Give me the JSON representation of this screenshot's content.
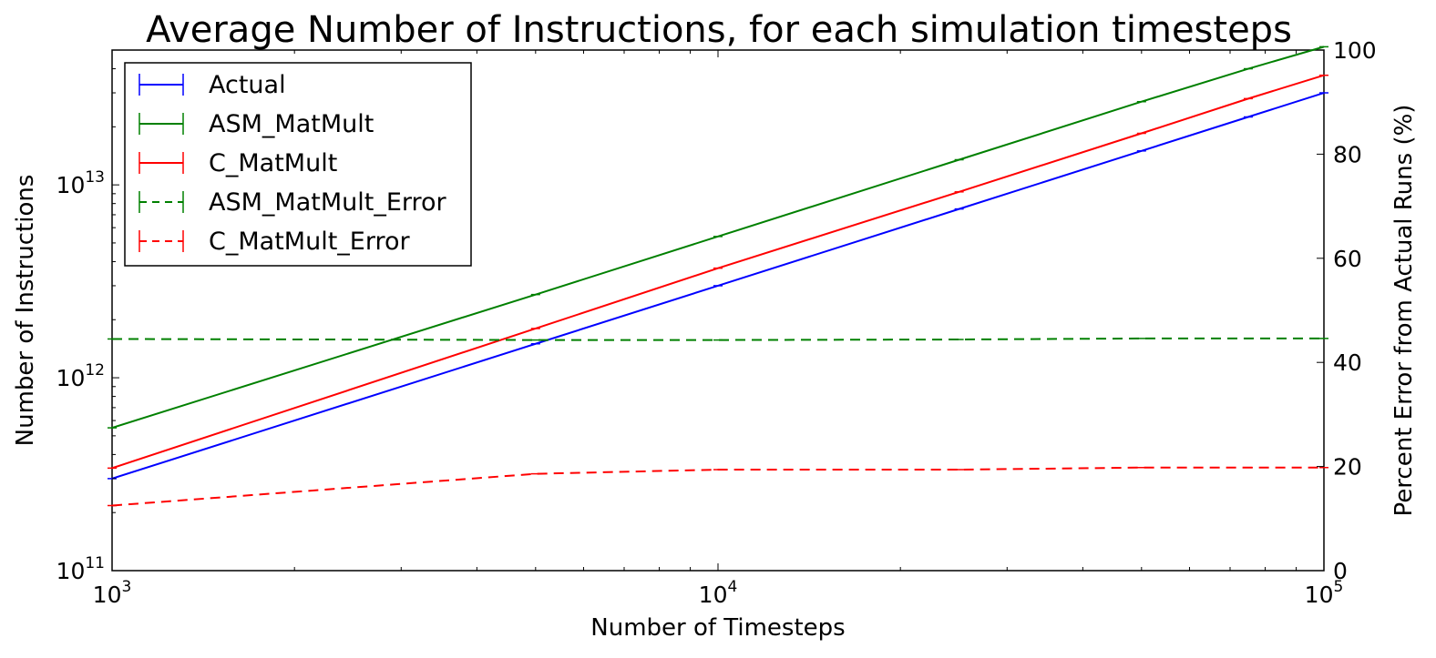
{
  "chart_data": {
    "type": "line",
    "title": "Average Number of Instructions, for each simulation timesteps",
    "xlabel": "Number of Timesteps",
    "ylabel": "Number of Instructions",
    "y2label": "Percent Error from Actual Runs (%)",
    "xscale": "log",
    "yscale": "log",
    "xlim": [
      1000,
      100000
    ],
    "ylim": [
      100000000000,
      50000000000000
    ],
    "y2lim": [
      0,
      100
    ],
    "x_ticks": [
      {
        "value": 1000,
        "base": "10",
        "exp": "3"
      },
      {
        "value": 10000,
        "base": "10",
        "exp": "4"
      },
      {
        "value": 100000,
        "base": "10",
        "exp": "5"
      }
    ],
    "y_ticks": [
      {
        "value": 100000000000,
        "base": "10",
        "exp": "11"
      },
      {
        "value": 1000000000000,
        "base": "10",
        "exp": "12"
      },
      {
        "value": 10000000000000,
        "base": "10",
        "exp": "13"
      }
    ],
    "y2_ticks": [
      "0",
      "20",
      "40",
      "60",
      "80",
      "100"
    ],
    "x": [
      1000,
      5000,
      10000,
      25000,
      50000,
      75000,
      100000
    ],
    "grid": false,
    "legend_position": "top-left",
    "series": [
      {
        "name": "Actual",
        "axis": "left",
        "style": "solid",
        "color": "#0000ff",
        "values": [
          300000000000,
          1500000000000,
          3000000000000,
          7500000000000,
          15000000000000,
          22500000000000,
          30000000000000
        ]
      },
      {
        "name": "ASM_MatMult",
        "axis": "left",
        "style": "solid",
        "color": "#008000",
        "values": [
          550000000000,
          2700000000000,
          5400000000000,
          13500000000000,
          27000000000000,
          40000000000000,
          52000000000000
        ]
      },
      {
        "name": "C_MatMult",
        "axis": "left",
        "style": "solid",
        "color": "#ff0000",
        "values": [
          340000000000,
          1800000000000,
          3700000000000,
          9200000000000,
          18500000000000,
          28000000000000,
          37000000000000
        ]
      },
      {
        "name": "ASM_MatMult_Error",
        "axis": "right",
        "style": "dashed",
        "color": "#008000",
        "values": [
          44.5,
          44.3,
          44.3,
          44.4,
          44.6,
          44.6,
          44.6
        ]
      },
      {
        "name": "C_MatMult_Error",
        "axis": "right",
        "style": "dashed",
        "color": "#ff0000",
        "values": [
          12.5,
          18.6,
          19.4,
          19.4,
          19.8,
          19.8,
          19.8
        ]
      }
    ]
  }
}
